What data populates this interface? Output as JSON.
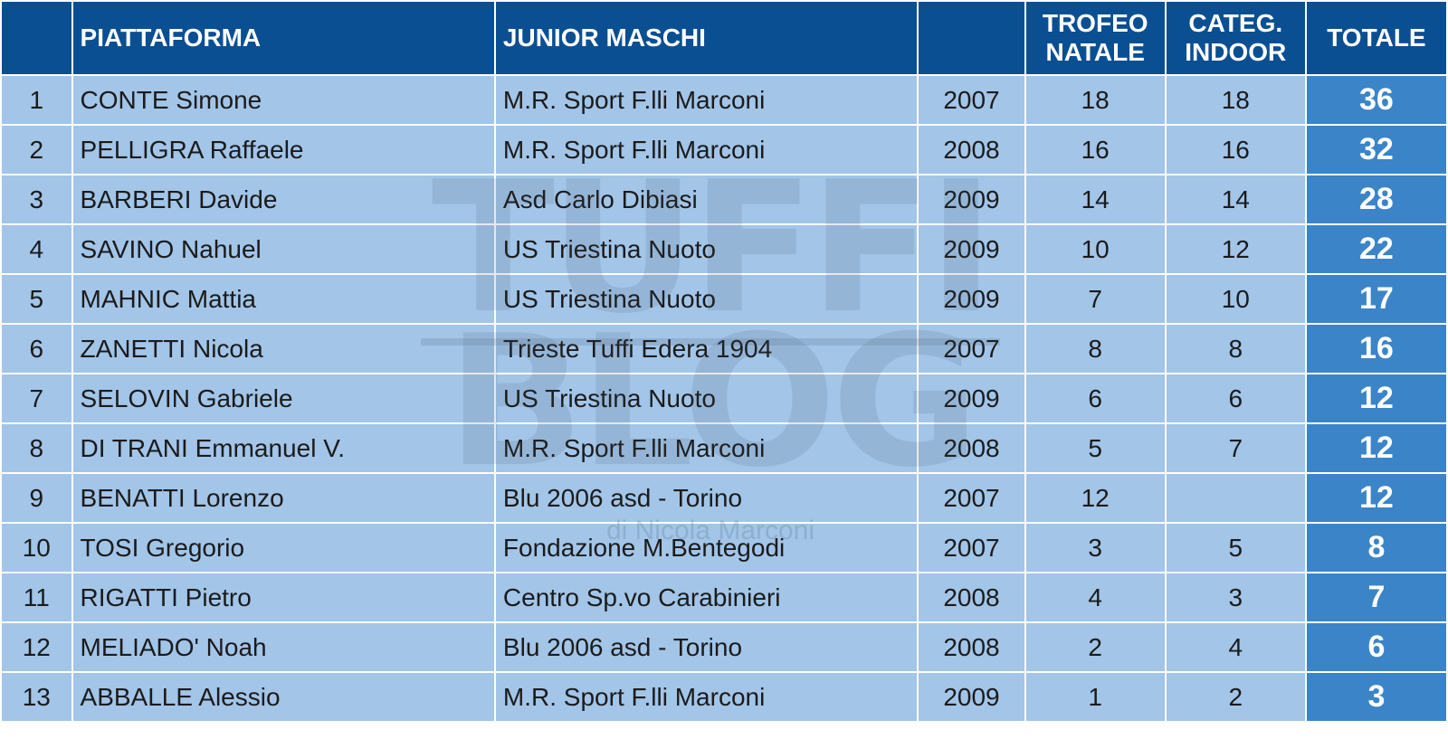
{
  "header": {
    "rank": "",
    "name": "PIATTAFORMA",
    "club": "JUNIOR MASCHI",
    "year": "",
    "trofeo_line1": "TROFEO",
    "trofeo_line2": "NATALE",
    "categ_line1": "CATEG.",
    "categ_line2": "INDOOR",
    "total": "TOTALE"
  },
  "rows": [
    {
      "rank": "1",
      "name": "CONTE Simone",
      "club": "M.R. Sport F.lli Marconi",
      "year": "2007",
      "trofeo": "18",
      "categ": "18",
      "total": "36"
    },
    {
      "rank": "2",
      "name": "PELLIGRA Raffaele",
      "club": "M.R. Sport F.lli Marconi",
      "year": "2008",
      "trofeo": "16",
      "categ": "16",
      "total": "32"
    },
    {
      "rank": "3",
      "name": "BARBERI Davide",
      "club": "Asd Carlo Dibiasi",
      "year": "2009",
      "trofeo": "14",
      "categ": "14",
      "total": "28"
    },
    {
      "rank": "4",
      "name": "SAVINO Nahuel",
      "club": "US Triestina Nuoto",
      "year": "2009",
      "trofeo": "10",
      "categ": "12",
      "total": "22"
    },
    {
      "rank": "5",
      "name": "MAHNIC Mattia",
      "club": "US Triestina Nuoto",
      "year": "2009",
      "trofeo": "7",
      "categ": "10",
      "total": "17"
    },
    {
      "rank": "6",
      "name": "ZANETTI Nicola",
      "club": "Trieste Tuffi Edera 1904",
      "year": "2007",
      "trofeo": "8",
      "categ": "8",
      "total": "16"
    },
    {
      "rank": "7",
      "name": "SELOVIN Gabriele",
      "club": "US Triestina Nuoto",
      "year": "2009",
      "trofeo": "6",
      "categ": "6",
      "total": "12"
    },
    {
      "rank": "8",
      "name": "DI TRANI Emmanuel V.",
      "club": "M.R. Sport F.lli Marconi",
      "year": "2008",
      "trofeo": "5",
      "categ": "7",
      "total": "12"
    },
    {
      "rank": "9",
      "name": "BENATTI Lorenzo",
      "club": "Blu 2006 asd - Torino",
      "year": "2007",
      "trofeo": "12",
      "categ": "",
      "total": "12"
    },
    {
      "rank": "10",
      "name": "TOSI Gregorio",
      "club": "Fondazione M.Bentegodi",
      "year": "2007",
      "trofeo": "3",
      "categ": "5",
      "total": "8"
    },
    {
      "rank": "11",
      "name": "RIGATTI Pietro",
      "club": "Centro Sp.vo Carabinieri",
      "year": "2008",
      "trofeo": "4",
      "categ": "3",
      "total": "7"
    },
    {
      "rank": "12",
      "name": "MELIADO' Noah",
      "club": "Blu 2006 asd - Torino",
      "year": "2008",
      "trofeo": "2",
      "categ": "4",
      "total": "6"
    },
    {
      "rank": "13",
      "name": "ABBALLE Alessio",
      "club": "M.R. Sport F.lli Marconi",
      "year": "2009",
      "trofeo": "1",
      "categ": "2",
      "total": "3"
    }
  ],
  "watermark": {
    "line1": "TUFFI",
    "line2": "BLOG",
    "credit": "di Nicola Marconi"
  },
  "colors": {
    "header_bg": "#0b4f93",
    "row_bg": "#a2c5e8",
    "total_bg": "#3c84c8"
  }
}
